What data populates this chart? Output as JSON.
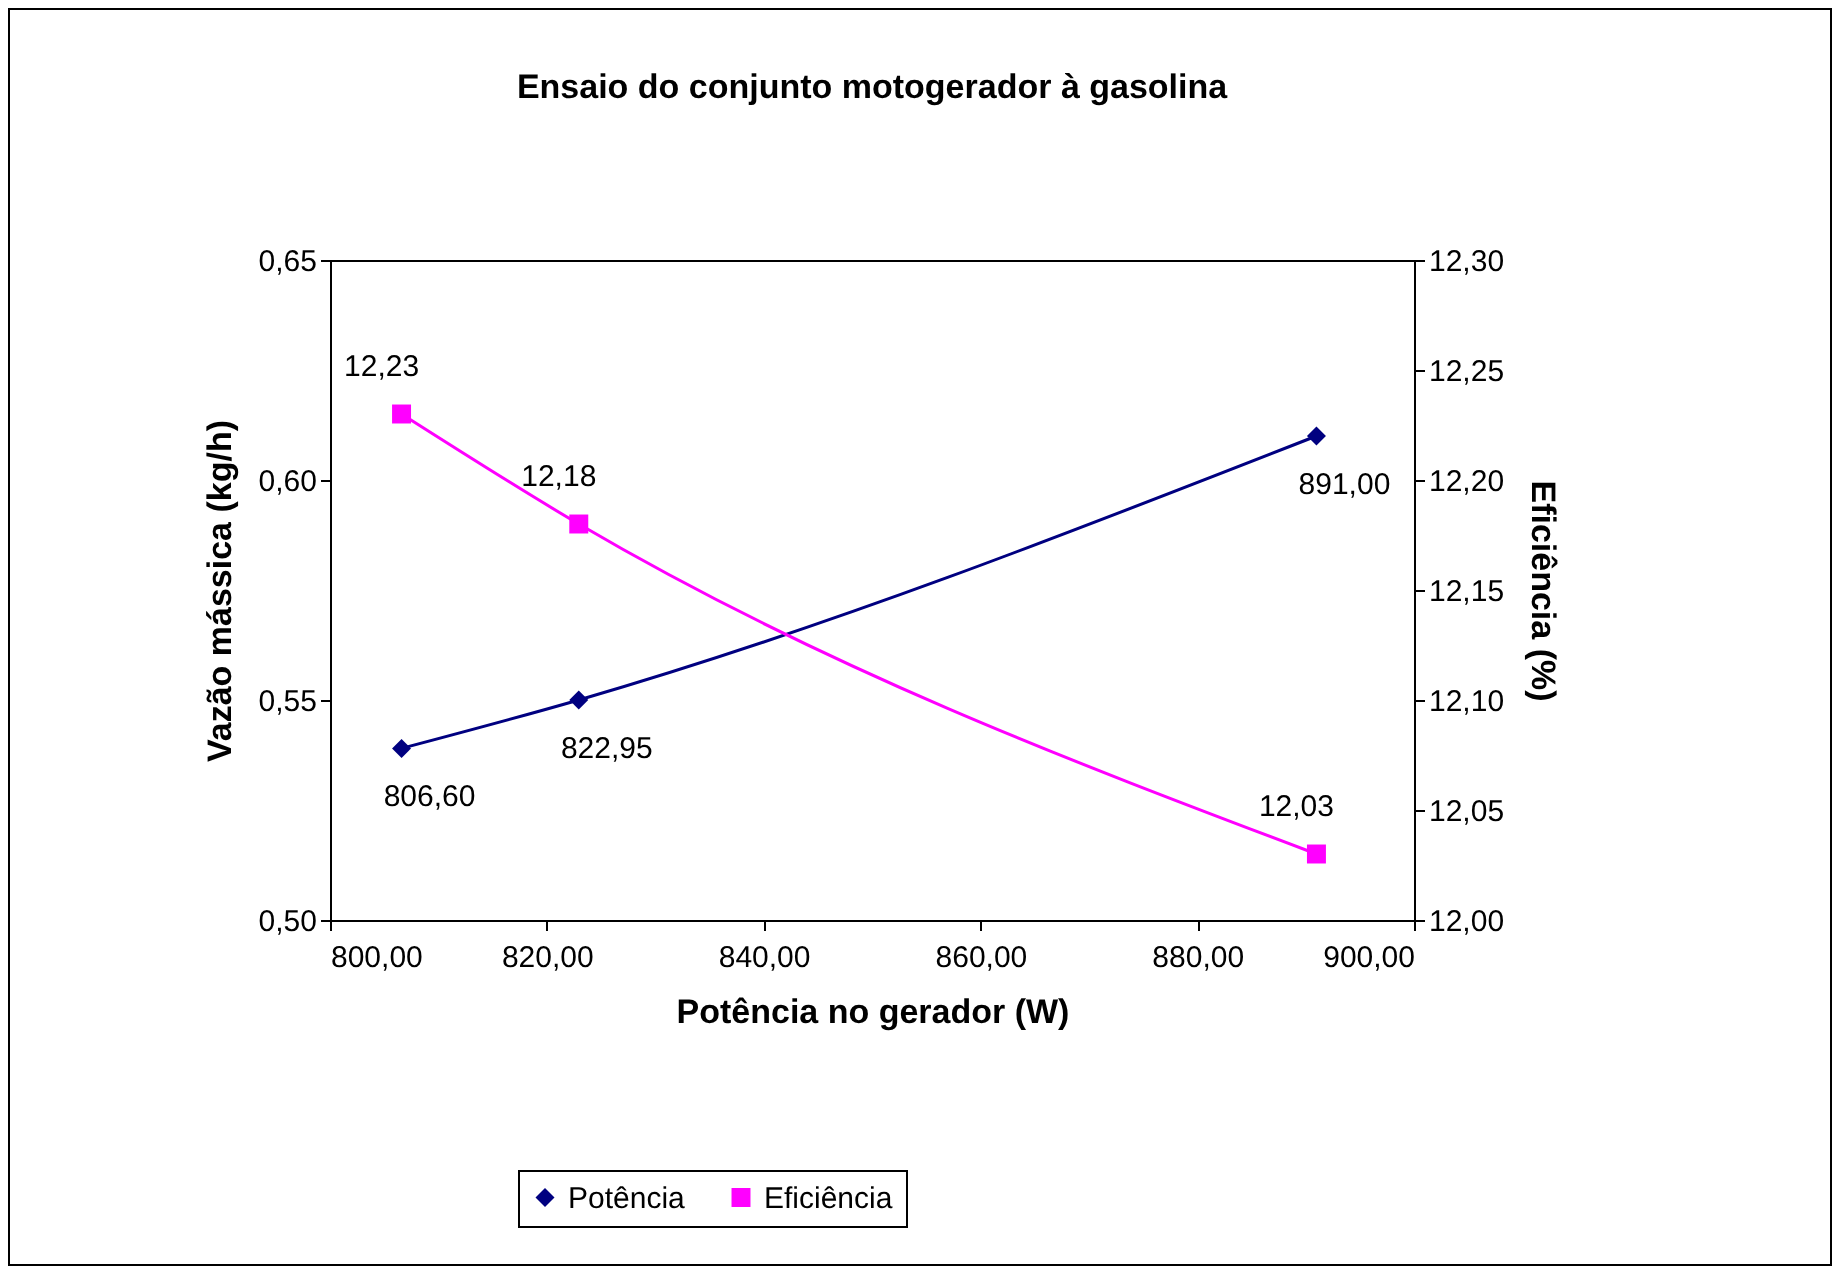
{
  "chart_data": {
    "type": "line",
    "title": "Ensaio do conjunto motogerador à gasolina",
    "xlabel": "Potência no gerador (W)",
    "ylabel": "Vazão mássica (kg/h)",
    "y2label": "Eficiência (%)",
    "xlim": [
      800,
      900
    ],
    "xticks": [
      {
        "value": 800,
        "label": "800,00"
      },
      {
        "value": 820,
        "label": "820,00"
      },
      {
        "value": 840,
        "label": "840,00"
      },
      {
        "value": 860,
        "label": "860,00"
      },
      {
        "value": 880,
        "label": "880,00"
      },
      {
        "value": 900,
        "label": "900,00"
      }
    ],
    "ylim": [
      0.5,
      0.65
    ],
    "yticks": [
      {
        "value": 0.5,
        "label": "0,50"
      },
      {
        "value": 0.55,
        "label": "0,55"
      },
      {
        "value": 0.6,
        "label": "0,60"
      },
      {
        "value": 0.65,
        "label": "0,65"
      }
    ],
    "y2lim": [
      12,
      12.3
    ],
    "y2ticks": [
      {
        "value": 12,
        "label": "12,00"
      },
      {
        "value": 12.05,
        "label": "12,05"
      },
      {
        "value": 12.1,
        "label": "12,10"
      },
      {
        "value": 12.15,
        "label": "12,15"
      },
      {
        "value": 12.2,
        "label": "12,20"
      },
      {
        "value": 12.25,
        "label": "12,25"
      },
      {
        "value": 12.3,
        "label": "12,30"
      }
    ],
    "x": [
      806.6,
      822.95,
      891
    ],
    "series": [
      {
        "name": "Potência",
        "color": "#000080",
        "marker": "diamond",
        "values": [
          0.539,
          0.55,
          0.61
        ]
      },
      {
        "name": "Eficiência",
        "color": "#ff00ff",
        "marker": "square",
        "axis": "y2",
        "values": [
          12.23,
          12.18,
          12.03
        ],
        "value_labels": [
          "12,23",
          "12,18",
          "12,03"
        ]
      }
    ],
    "annotations": [
      {
        "text": "806,60",
        "x": 806.6,
        "y": 0.539
      },
      {
        "text": "822,95",
        "x": 822.95,
        "y": 0.55
      },
      {
        "text": "891,00",
        "x": 891,
        "y": 0.61
      }
    ],
    "legend": "bottom",
    "grid": false,
    "line_style": "solid"
  }
}
